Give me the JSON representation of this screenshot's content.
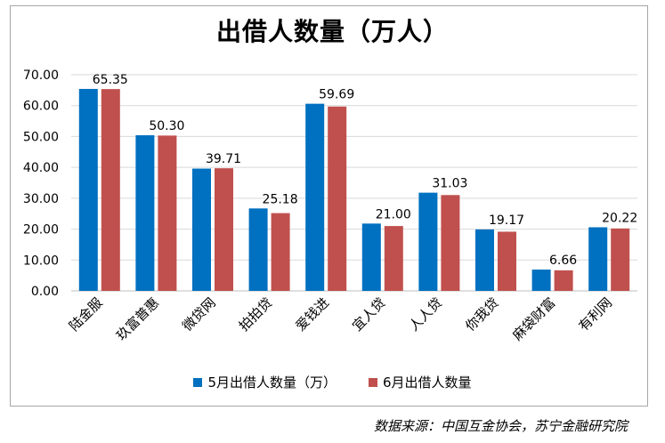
{
  "chart_data": {
    "type": "bar",
    "title": "出借人数量（万人）",
    "categories": [
      "陆金服",
      "玖富普惠",
      "微贷网",
      "拍拍贷",
      "爱钱进",
      "宜人贷",
      "人人贷",
      "你我贷",
      "麻袋财富",
      "有利网"
    ],
    "series": [
      {
        "name": "5月出借人数量（万）",
        "color": "#0070c0",
        "values": [
          65.4,
          50.4,
          39.6,
          26.7,
          60.6,
          21.8,
          31.8,
          19.9,
          6.9,
          20.6
        ]
      },
      {
        "name": "6月出借人数量",
        "color": "#c0504d",
        "values": [
          65.35,
          50.3,
          39.71,
          25.18,
          59.69,
          21.0,
          31.03,
          19.17,
          6.66,
          20.22
        ]
      }
    ],
    "data_labels": [
      "65.35",
      "50.30",
      "39.71",
      "25.18",
      "59.69",
      "21.00",
      "31.03",
      "19.17",
      "6.66",
      "20.22"
    ],
    "yticks": [
      "0.00",
      "10.00",
      "20.00",
      "30.00",
      "40.00",
      "50.00",
      "60.00",
      "70.00"
    ],
    "ylim": [
      0,
      70
    ],
    "grid": true,
    "legend": "bottom"
  },
  "source": "数据来源：中国互金协会，苏宁金融研究院"
}
